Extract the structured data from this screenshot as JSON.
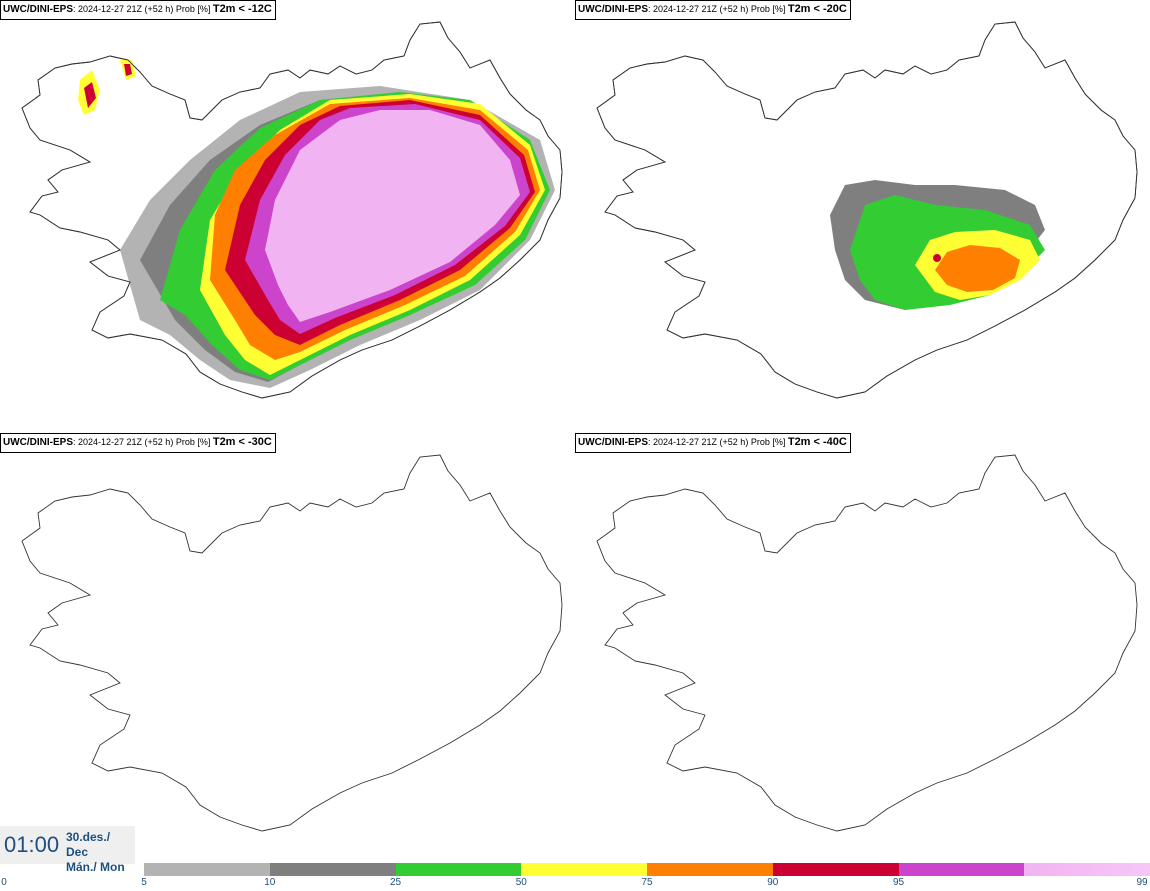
{
  "panels": [
    {
      "model": "UWC/DINI-EPS",
      "info": ": 2024-12-27 21Z (+52 h) Prob [%] ",
      "threshold": "T2m < -12C"
    },
    {
      "model": "UWC/DINI-EPS",
      "info": ": 2024-12-27 21Z (+52 h) Prob [%] ",
      "threshold": "T2m < -20C"
    },
    {
      "model": "UWC/DINI-EPS",
      "info": ": 2024-12-27 21Z (+52 h) Prob [%] ",
      "threshold": "T2m < -30C"
    },
    {
      "model": "UWC/DINI-EPS",
      "info": ": 2024-12-27 21Z (+52 h) Prob [%] ",
      "threshold": "T2m < -40C"
    }
  ],
  "time": {
    "clock": "01:00",
    "date_line": "30.des./ Dec",
    "day_line": "Mán./ Mon"
  },
  "legend": {
    "ticks": [
      "0",
      "5",
      "10",
      "25",
      "50",
      "75",
      "90",
      "95",
      "99"
    ],
    "colors": [
      "#b3b3b3",
      "#7f7f7f",
      "#33cc33",
      "#ffff33",
      "#ff7f00",
      "#cc0033",
      "#cc44cc",
      "#f2b3f2"
    ],
    "last_gradient": "#f7c6f7"
  },
  "colors": {
    "p5": "#b3b3b3",
    "p10": "#7f7f7f",
    "p25": "#33cc33",
    "p50": "#ffff33",
    "p75": "#ff7f00",
    "p90": "#cc0033",
    "p95": "#cc44cc",
    "p99": "#f2b3f2"
  }
}
